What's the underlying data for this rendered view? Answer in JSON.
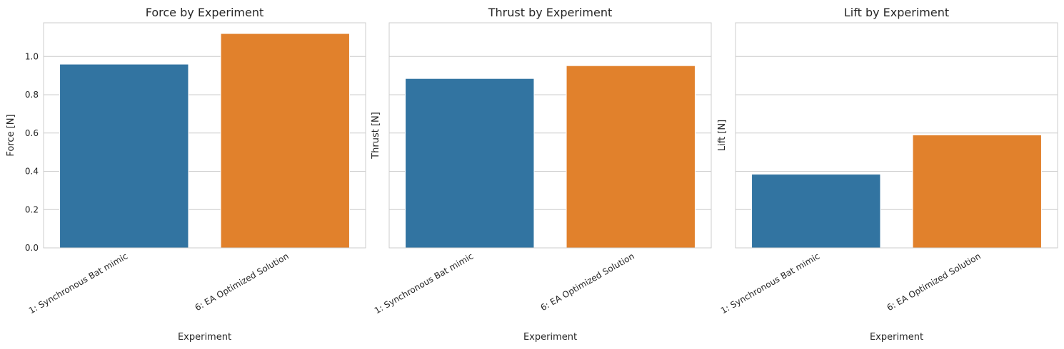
{
  "chart_data": [
    {
      "type": "bar",
      "title": "Force by Experiment",
      "xlabel": "Experiment",
      "ylabel": "Force [N]",
      "categories": [
        "1: Synchronous Bat mimic",
        "6: EA Optimized Solution"
      ],
      "values": [
        0.96,
        1.12
      ],
      "colors": [
        "#3274a1",
        "#e1812c"
      ],
      "ylim": [
        0,
        1.176
      ],
      "yticks": [
        "0.0",
        "0.2",
        "0.4",
        "0.6",
        "0.8",
        "1.0"
      ],
      "grid": true
    },
    {
      "type": "bar",
      "title": "Thrust by Experiment",
      "xlabel": "Experiment",
      "ylabel": "Thrust [N]",
      "categories": [
        "1: Synchronous Bat mimic",
        "6: EA Optimized Solution"
      ],
      "values": [
        0.885,
        0.952
      ],
      "colors": [
        "#3274a1",
        "#e1812c"
      ],
      "ylim": [
        0,
        1.176
      ],
      "yticks": [],
      "grid": true
    },
    {
      "type": "bar",
      "title": "Lift by Experiment",
      "xlabel": "Experiment",
      "ylabel": "Lift [N]",
      "categories": [
        "1: Synchronous Bat mimic",
        "6: EA Optimized Solution"
      ],
      "values": [
        0.385,
        0.59
      ],
      "colors": [
        "#3274a1",
        "#e1812c"
      ],
      "ylim": [
        0,
        1.176
      ],
      "yticks": [],
      "grid": true
    }
  ]
}
